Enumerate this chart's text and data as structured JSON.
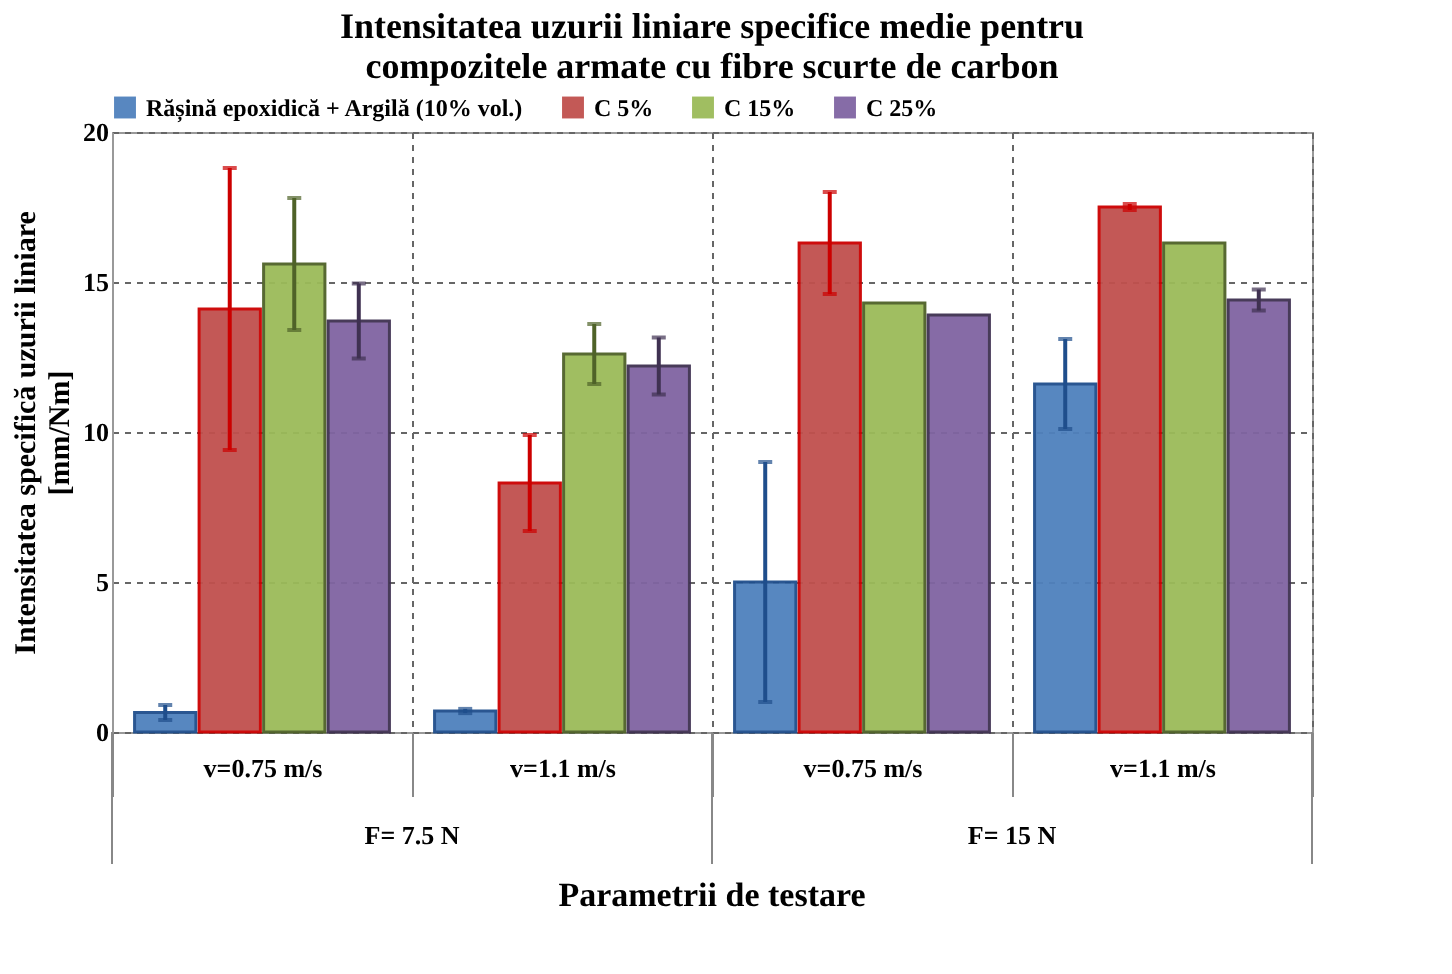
{
  "chart_data": {
    "type": "bar",
    "title": "Intensitatea uzurii liniare specifice medie pentru\ncompozitele armate cu fibre scurte de carbon",
    "xlabel": "Parametrii de testare",
    "ylabel": "Intensitatea specifică uzurii liniare\n[mm/Nm]",
    "categories": [
      "v=0.75 m/s",
      "v=1.1 m/s",
      "v=0.75 m/s",
      "v=1.1 m/s"
    ],
    "annotations": [
      "F= 7.5 N",
      "F= 15 N"
    ],
    "series": [
      {
        "name": "Rășină epoxidică + Argilă (10% vol.)",
        "color": "#4f81bd",
        "values": [
          0.65,
          0.7,
          5.0,
          11.6
        ],
        "errors": [
          0.25,
          0.07,
          4.0,
          1.5
        ]
      },
      {
        "name": "C 5%",
        "color": "#c0504d",
        "values": [
          14.1,
          8.3,
          16.3,
          17.5
        ],
        "errors": [
          4.7,
          1.6,
          1.7,
          0.1
        ]
      },
      {
        "name": "C 15%",
        "color": "#9bbb59",
        "values": [
          15.6,
          12.6,
          14.3,
          16.3
        ],
        "errors": [
          2.2,
          1.0,
          null,
          null
        ]
      },
      {
        "name": "C 25%",
        "color": "#8064a2",
        "values": [
          13.7,
          12.2,
          13.9,
          14.4
        ],
        "errors": [
          1.25,
          0.95,
          null,
          0.35
        ]
      }
    ],
    "ylim": [
      0,
      20
    ],
    "yticks": [
      0,
      5,
      10,
      15,
      20
    ],
    "grid": true,
    "legend": "top"
  }
}
